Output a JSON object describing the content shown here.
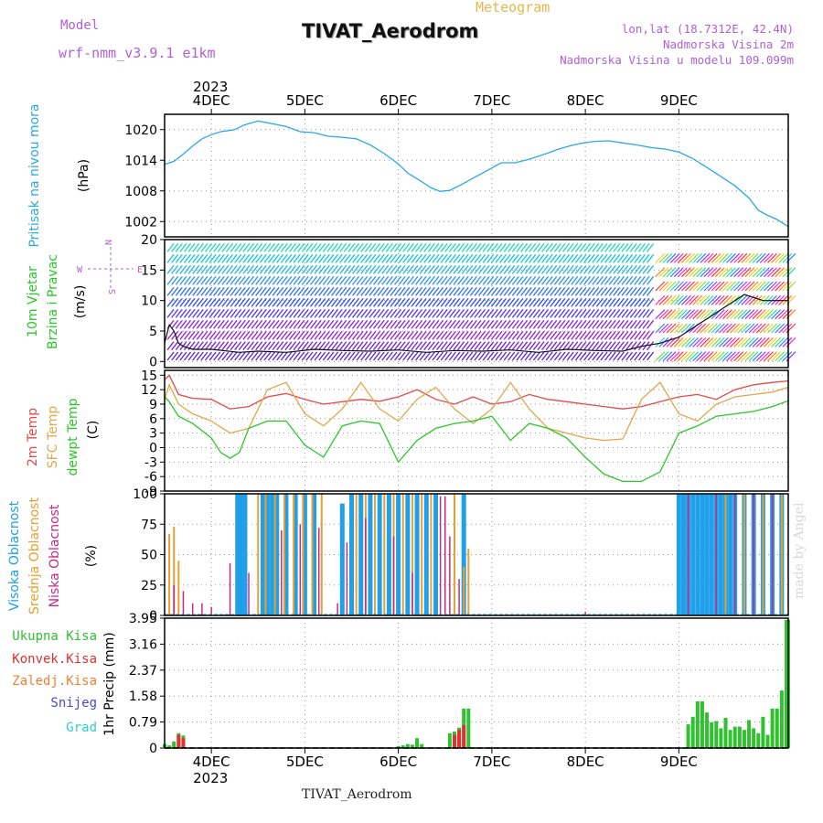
{
  "header": {
    "model_label": "Model",
    "model_name": "wrf-nmm_v3.9.1 e1km",
    "product": "Meteogram",
    "title": "TIVAT_Aerodrom",
    "lonlat": "lon,lat (18.7312E, 42.4N)",
    "altitude": "Nadmorska Visina 2m",
    "model_altitude": "Nadmorska Visina u modelu 109.099m"
  },
  "footer": {
    "station": "TIVAT_Aerodrom"
  },
  "credit": "made by Angel",
  "colors": {
    "pressure": "#2aa8e8",
    "temp2m": "#e84848",
    "sfc_temp": "#e0a848",
    "dewpoint": "#28c828",
    "high_cloud": "#20a0e8",
    "mid_cloud": "#e8a030",
    "low_cloud": "#c82888",
    "total_precip": "#30c030",
    "convective": "#e03030",
    "frozen": "#f08030",
    "snow": "#4848e0",
    "hail": "#30d0d0",
    "label_violet": "#b060d8"
  },
  "chart_data": [
    {
      "id": "pressure",
      "type": "line",
      "ylabel_lines": [
        "Pritisak na nivou mora",
        "(hPa)"
      ],
      "yticks": [
        1002,
        1008,
        1014,
        1020
      ],
      "ylim": [
        999,
        1023
      ],
      "x_days": [
        "4DEC",
        "5DEC",
        "6DEC",
        "7DEC",
        "8DEC",
        "9DEC"
      ],
      "x_year": "2023",
      "series": [
        {
          "x": [
            0.0,
            0.1,
            0.2,
            0.3,
            0.4,
            0.5,
            0.6,
            0.75,
            0.85,
            1.0,
            1.2,
            1.3,
            1.45,
            1.6,
            1.75,
            1.9,
            2.05,
            2.2,
            2.35,
            2.5,
            2.6,
            2.75,
            2.85,
            2.95,
            3.05,
            3.15,
            3.3,
            3.45,
            3.6,
            3.75,
            3.9,
            4.1,
            4.2,
            4.35,
            4.45,
            4.6,
            4.75,
            4.9,
            5.05,
            5.2,
            5.35,
            5.5,
            5.65,
            5.8,
            5.95,
            6.1,
            6.25,
            6.35,
            6.45,
            6.55,
            6.67
          ],
          "y": [
            1013.2,
            1013.8,
            1015.2,
            1016.8,
            1018.2,
            1019.0,
            1019.6,
            1020.0,
            1020.9,
            1021.7,
            1021.0,
            1020.6,
            1019.6,
            1019.4,
            1018.7,
            1018.5,
            1018.2,
            1017.0,
            1015.3,
            1013.3,
            1011.5,
            1009.8,
            1008.6,
            1007.9,
            1008.1,
            1009.0,
            1010.5,
            1012.0,
            1013.5,
            1013.5,
            1014.2,
            1015.4,
            1016.1,
            1016.9,
            1017.3,
            1017.7,
            1017.8,
            1017.4,
            1017.0,
            1016.5,
            1016.2,
            1015.6,
            1014.3,
            1012.6,
            1010.8,
            1009.0,
            1006.6,
            1004.2,
            1003.2,
            1002.4,
            1001.0
          ]
        }
      ]
    },
    {
      "id": "wind",
      "type": "line",
      "ylabel_lines": [
        "10m Vjetar",
        "Brzina i Pravac",
        "(m/s)"
      ],
      "compass": {
        "n": "N",
        "s": "S",
        "e": "E",
        "w": "W"
      },
      "yticks": [
        0,
        5,
        10,
        15,
        20
      ],
      "ylim": [
        -1,
        20
      ],
      "series": [
        {
          "name": "speed",
          "x": [
            0.0,
            0.05,
            0.1,
            0.15,
            0.2,
            0.3,
            0.5,
            0.8,
            1.0,
            1.3,
            1.6,
            1.9,
            2.2,
            2.5,
            2.8,
            3.1,
            3.4,
            3.7,
            4.0,
            4.3,
            4.6,
            4.9,
            5.1,
            5.3,
            5.5,
            5.6,
            5.7,
            5.8,
            5.9,
            6.0,
            6.1,
            6.2,
            6.3,
            6.4,
            6.5,
            6.67
          ],
          "y": [
            3.0,
            6.0,
            5.0,
            3.0,
            2.5,
            2.0,
            2.0,
            1.5,
            1.7,
            1.5,
            2.0,
            1.8,
            1.7,
            1.9,
            1.5,
            1.8,
            1.7,
            1.9,
            1.5,
            2.0,
            1.8,
            1.7,
            2.5,
            3.0,
            4.0,
            5.0,
            6.0,
            7.0,
            8.0,
            9.0,
            10.0,
            11.0,
            10.5,
            10.0,
            10.0,
            10.0
          ]
        }
      ]
    },
    {
      "id": "temperature",
      "type": "line",
      "ylabel_lines": [
        "2m Temp",
        "SFC Temp",
        "dewpt Temp",
        "(C)"
      ],
      "yticks": [
        -9,
        -6,
        -3,
        0,
        3,
        6,
        9,
        12,
        15
      ],
      "ylim": [
        -9,
        16
      ],
      "series": [
        {
          "name": "2m Temp",
          "x": [
            0.0,
            0.05,
            0.15,
            0.3,
            0.5,
            0.7,
            0.9,
            1.1,
            1.3,
            1.5,
            1.7,
            1.9,
            2.1,
            2.3,
            2.5,
            2.7,
            2.9,
            3.1,
            3.3,
            3.5,
            3.7,
            3.9,
            4.1,
            4.3,
            4.5,
            4.7,
            4.9,
            5.1,
            5.3,
            5.5,
            5.7,
            5.9,
            6.1,
            6.3,
            6.5,
            6.67
          ],
          "y": [
            14.0,
            15.0,
            11.0,
            10.2,
            10.0,
            8.0,
            8.5,
            10.5,
            11.2,
            10.0,
            9.0,
            9.5,
            10.0,
            9.6,
            10.5,
            12.0,
            10.0,
            9.0,
            10.5,
            9.0,
            9.5,
            11.0,
            10.0,
            9.5,
            9.0,
            8.5,
            8.0,
            8.5,
            9.5,
            10.5,
            11.0,
            10.0,
            12.0,
            13.0,
            13.5,
            13.8
          ]
        },
        {
          "name": "SFC Temp",
          "x": [
            0.0,
            0.05,
            0.15,
            0.3,
            0.5,
            0.7,
            0.9,
            1.1,
            1.3,
            1.5,
            1.7,
            1.9,
            2.1,
            2.3,
            2.5,
            2.7,
            2.9,
            3.1,
            3.3,
            3.5,
            3.7,
            3.9,
            4.1,
            4.3,
            4.5,
            4.7,
            4.9,
            5.1,
            5.3,
            5.5,
            5.7,
            5.9,
            6.1,
            6.3,
            6.5,
            6.67
          ],
          "y": [
            10.0,
            13.0,
            9.0,
            7.0,
            5.5,
            3.0,
            4.0,
            12.0,
            13.5,
            7.0,
            4.5,
            8.0,
            13.5,
            8.0,
            5.5,
            10.0,
            12.5,
            8.0,
            5.0,
            8.0,
            13.5,
            8.0,
            4.0,
            3.0,
            2.0,
            1.5,
            1.8,
            10.0,
            13.5,
            7.0,
            5.5,
            9.0,
            10.5,
            11.0,
            11.5,
            12.5
          ]
        },
        {
          "name": "dewpt Temp",
          "x": [
            0.0,
            0.05,
            0.15,
            0.3,
            0.5,
            0.6,
            0.7,
            0.8,
            0.9,
            1.1,
            1.3,
            1.5,
            1.7,
            1.9,
            2.1,
            2.3,
            2.5,
            2.7,
            2.9,
            3.1,
            3.3,
            3.5,
            3.7,
            3.9,
            4.1,
            4.3,
            4.5,
            4.7,
            4.9,
            5.1,
            5.3,
            5.5,
            5.7,
            5.9,
            6.1,
            6.3,
            6.5,
            6.67
          ],
          "y": [
            10.5,
            9.5,
            6.5,
            5.0,
            2.0,
            -1.0,
            -2.2,
            -1.0,
            4.0,
            5.5,
            5.5,
            0.5,
            -2.0,
            4.5,
            5.5,
            5.0,
            -3.0,
            1.5,
            4.0,
            5.0,
            5.5,
            6.5,
            1.5,
            5.0,
            4.0,
            2.0,
            -2.0,
            -5.5,
            -7.0,
            -7.0,
            -5.0,
            3.0,
            4.5,
            6.5,
            7.0,
            7.5,
            8.5,
            9.7
          ]
        }
      ]
    },
    {
      "id": "cloud",
      "type": "bar",
      "ylabel_lines": [
        "Visoka Oblacnost",
        "Srednja Oblacnost",
        "Niska Oblacnost",
        "(%)"
      ],
      "yticks": [
        0,
        25,
        50,
        75,
        100
      ],
      "ylim": [
        0,
        100
      ],
      "series": [
        {
          "name": "Visoka Oblacnost",
          "x": [
            0.78,
            0.8,
            0.82,
            0.84,
            0.86,
            1.05,
            1.1,
            1.15,
            1.2,
            1.3,
            1.4,
            1.5,
            1.6,
            1.9,
            2.0,
            2.1,
            2.2,
            2.3,
            2.4,
            2.5,
            2.6,
            2.7,
            2.8,
            2.9,
            3.2,
            5.5,
            5.55,
            5.6,
            5.65,
            5.7,
            5.75,
            5.8,
            5.85,
            5.9,
            5.95,
            6.0,
            6.05,
            6.1,
            6.2,
            6.3,
            6.4,
            6.5,
            6.6
          ],
          "y": [
            100,
            100,
            100,
            100,
            100,
            100,
            100,
            100,
            100,
            100,
            100,
            100,
            100,
            92,
            100,
            100,
            100,
            100,
            100,
            100,
            100,
            100,
            100,
            100,
            100,
            100,
            100,
            100,
            100,
            100,
            100,
            100,
            100,
            100,
            100,
            100,
            100,
            100,
            100,
            100,
            100,
            100,
            100
          ]
        },
        {
          "name": "Srednja Oblacnost",
          "x": [
            0.05,
            0.1,
            0.15,
            1.0,
            1.08,
            1.18,
            1.28,
            1.38,
            1.48,
            1.58,
            1.68,
            2.05,
            2.15,
            2.25,
            2.35,
            2.45,
            2.55,
            2.65,
            2.75,
            2.85,
            3.1,
            3.2,
            3.25,
            6.0,
            6.2,
            6.4,
            6.6
          ],
          "y": [
            67,
            73,
            45,
            100,
            100,
            100,
            100,
            100,
            100,
            100,
            100,
            100,
            100,
            100,
            100,
            100,
            100,
            100,
            100,
            100,
            100,
            40,
            55,
            100,
            100,
            100,
            100
          ]
        },
        {
          "name": "Niska Oblacnost",
          "x": [
            0.1,
            0.2,
            0.3,
            0.4,
            0.5,
            0.7,
            0.9,
            1.25,
            1.45,
            1.65,
            1.85,
            1.95,
            2.15,
            2.45,
            2.65,
            2.95,
            3.0,
            3.05,
            3.15,
            4.5,
            5.6,
            5.9,
            6.1,
            6.3,
            6.5
          ],
          "y": [
            25,
            20,
            10,
            10,
            7,
            43,
            35,
            70,
            75,
            72,
            10,
            60,
            80,
            65,
            35,
            98,
            98,
            65,
            30,
            3,
            100,
            100,
            100,
            100,
            100
          ]
        }
      ]
    },
    {
      "id": "precip",
      "type": "bar",
      "ylabel_lines": [
        "1hr Precip (mm)"
      ],
      "legend": [
        "Ukupna Kisa",
        "Konvek.Kisa",
        "Zaledj.Kisa",
        "Snijeg",
        "Grad"
      ],
      "yticks": [
        0,
        0.79,
        1.58,
        2.37,
        3.16,
        3.95
      ],
      "ylim": [
        0,
        3.95
      ],
      "series": [
        {
          "name": "Ukupna Kisa",
          "x": [
            0.0,
            0.05,
            0.1,
            0.15,
            0.2,
            1.3,
            2.5,
            2.55,
            2.6,
            2.65,
            2.7,
            2.75,
            3.05,
            3.1,
            3.15,
            3.2,
            3.25,
            5.6,
            5.65,
            5.7,
            5.75,
            5.8,
            5.85,
            5.9,
            5.95,
            6.0,
            6.05,
            6.1,
            6.15,
            6.2,
            6.25,
            6.3,
            6.35,
            6.4,
            6.45,
            6.5,
            6.55,
            6.6,
            6.65,
            6.67
          ],
          "y": [
            0.12,
            0.08,
            0.2,
            0.45,
            0.38,
            0.02,
            0.06,
            0.08,
            0.12,
            0.1,
            0.3,
            0.12,
            0.45,
            0.5,
            0.62,
            1.2,
            1.2,
            0.72,
            0.95,
            1.42,
            1.42,
            1.08,
            0.78,
            0.82,
            0.6,
            0.92,
            0.55,
            0.65,
            0.65,
            0.55,
            0.85,
            0.6,
            0.45,
            0.95,
            0.4,
            1.2,
            1.2,
            1.75,
            3.9,
            3.9
          ]
        },
        {
          "name": "Konvek.Kisa",
          "x": [
            0.15,
            0.2,
            3.1,
            3.15,
            3.2
          ],
          "y": [
            0.4,
            0.3,
            0.4,
            0.55,
            0.7
          ]
        },
        {
          "name": "Zaledj.Kisa",
          "x": [],
          "y": []
        },
        {
          "name": "Snijeg",
          "x": [],
          "y": []
        },
        {
          "name": "Grad",
          "x": [],
          "y": []
        }
      ]
    }
  ]
}
